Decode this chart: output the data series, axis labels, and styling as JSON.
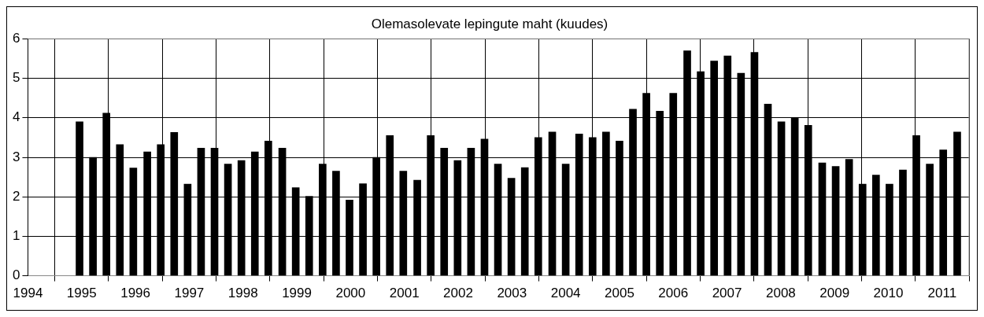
{
  "chart_data": {
    "type": "bar",
    "title": "Olemasolevate lepingute maht (kuudes)",
    "x": [
      1994.96,
      1995.21,
      1995.46,
      1995.71,
      1995.96,
      1996.22,
      1996.47,
      1996.72,
      1996.97,
      1997.22,
      1997.47,
      1997.72,
      1997.97,
      1998.22,
      1998.47,
      1998.73,
      1998.98,
      1999.23,
      1999.48,
      1999.73,
      1999.98,
      2000.23,
      2000.48,
      2000.73,
      2000.98,
      2001.24,
      2001.49,
      2001.74,
      2001.99,
      2002.24,
      2002.49,
      2002.74,
      2002.99,
      2003.24,
      2003.49,
      2003.75,
      2004.0,
      2004.25,
      2004.5,
      2004.75,
      2005.0,
      2005.25,
      2005.5,
      2005.75,
      2006.0,
      2006.26,
      2006.51,
      2006.76,
      2007.01,
      2007.26,
      2007.51,
      2007.76,
      2008.01,
      2008.26,
      2008.51,
      2008.77,
      2009.02,
      2009.27,
      2009.52,
      2009.77,
      2010.02,
      2010.27,
      2010.52,
      2010.77,
      2011.02,
      2011.28
    ],
    "values": [
      3.9,
      3.0,
      4.12,
      3.32,
      2.73,
      3.14,
      3.32,
      3.63,
      2.32,
      3.23,
      3.23,
      2.83,
      2.92,
      3.14,
      3.41,
      3.23,
      2.23,
      2.01,
      2.83,
      2.65,
      1.92,
      2.33,
      3.0,
      3.55,
      2.65,
      2.42,
      3.55,
      3.23,
      2.92,
      3.23,
      3.46,
      2.83,
      2.47,
      2.74,
      3.5,
      3.64,
      2.83,
      3.59,
      3.5,
      3.64,
      3.41,
      4.22,
      4.62,
      4.17,
      4.62,
      5.7,
      5.17,
      5.44,
      5.57,
      5.13,
      5.66,
      4.35,
      3.9,
      3.99,
      3.81,
      2.86,
      2.77,
      2.95,
      2.32,
      2.55,
      2.32,
      2.68,
      3.55,
      2.83,
      3.19,
      3.64
    ],
    "color": "#000000",
    "xlim": [
      1994,
      2011.5
    ],
    "xticks": [
      1994,
      1995,
      1996,
      1997,
      1998,
      1999,
      2000,
      2001,
      2002,
      2003,
      2004,
      2005,
      2006,
      2007,
      2008,
      2009,
      2010,
      2011
    ],
    "ylim": [
      0,
      6
    ],
    "yticks": [
      0,
      1,
      2,
      3,
      4,
      5,
      6
    ],
    "grid": true,
    "legend": false
  }
}
